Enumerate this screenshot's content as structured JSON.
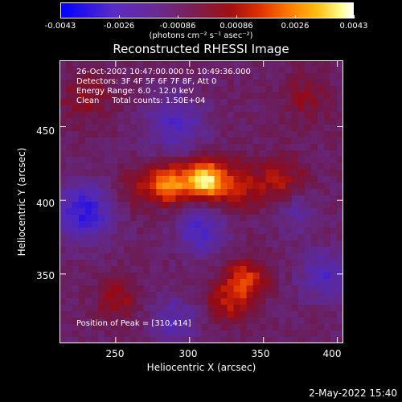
{
  "colorbar": {
    "ticks": [
      "-0.0043",
      "-0.0026",
      "-0.00086",
      "0.00086",
      "0.0026",
      "0.0043"
    ],
    "unit": "(photons cm⁻² s⁻¹ asec⁻²)"
  },
  "title": "Reconstructed RHESSI Image",
  "info": {
    "time_range": "26-Oct-2002 10:47:00.000 to 10:49:36.000",
    "detectors": "Detectors: 3F 4F 5F 6F 7F 8F, Att 0",
    "energy_range": "Energy Range: 6.0 - 12.0 keV",
    "method": "Clean     Total counts: 1.50E+04",
    "peak": "Position of Peak = [310,414]"
  },
  "chart_data": {
    "type": "heatmap",
    "title": "Reconstructed RHESSI Image",
    "xlabel": "Heliocentric X (arcsec)",
    "ylabel": "Heliocentric Y (arcsec)",
    "xlim": [
      212,
      404
    ],
    "ylim": [
      303,
      495
    ],
    "x_ticks": [
      "250",
      "300",
      "350",
      "400"
    ],
    "y_ticks": [
      "350",
      "400",
      "450"
    ],
    "color_range": [
      -0.0043,
      0.0043
    ],
    "peak_position": [
      310,
      414
    ],
    "sources": [
      {
        "x": 310,
        "y": 414,
        "amplitude": 0.0043,
        "sigma": 9
      },
      {
        "x": 287,
        "y": 411,
        "amplitude": 0.0036,
        "sigma": 9
      },
      {
        "x": 330,
        "y": 410,
        "amplitude": 0.0018,
        "sigma": 12
      },
      {
        "x": 362,
        "y": 412,
        "amplitude": 0.0016,
        "sigma": 12
      },
      {
        "x": 265,
        "y": 408,
        "amplitude": 0.0012,
        "sigma": 10
      },
      {
        "x": 338,
        "y": 345,
        "amplitude": 0.0024,
        "sigma": 10
      },
      {
        "x": 325,
        "y": 330,
        "amplitude": 0.0015,
        "sigma": 10
      },
      {
        "x": 252,
        "y": 333,
        "amplitude": 0.0013,
        "sigma": 10
      },
      {
        "x": 230,
        "y": 470,
        "amplitude": 0.0012,
        "sigma": 12
      },
      {
        "x": 380,
        "y": 470,
        "amplitude": 0.001,
        "sigma": 12
      },
      {
        "x": 228,
        "y": 392,
        "amplitude": -0.0025,
        "sigma": 14
      },
      {
        "x": 308,
        "y": 380,
        "amplitude": -0.002,
        "sigma": 12
      },
      {
        "x": 290,
        "y": 453,
        "amplitude": -0.0018,
        "sigma": 14
      },
      {
        "x": 392,
        "y": 348,
        "amplitude": -0.0018,
        "sigma": 12
      },
      {
        "x": 290,
        "y": 318,
        "amplitude": -0.0015,
        "sigma": 12
      },
      {
        "x": 372,
        "y": 392,
        "amplitude": -0.0014,
        "sigma": 10
      }
    ]
  },
  "datestamp": "2-May-2022 15:40",
  "colors": {
    "background": "#000000",
    "text": "#ffffff"
  }
}
